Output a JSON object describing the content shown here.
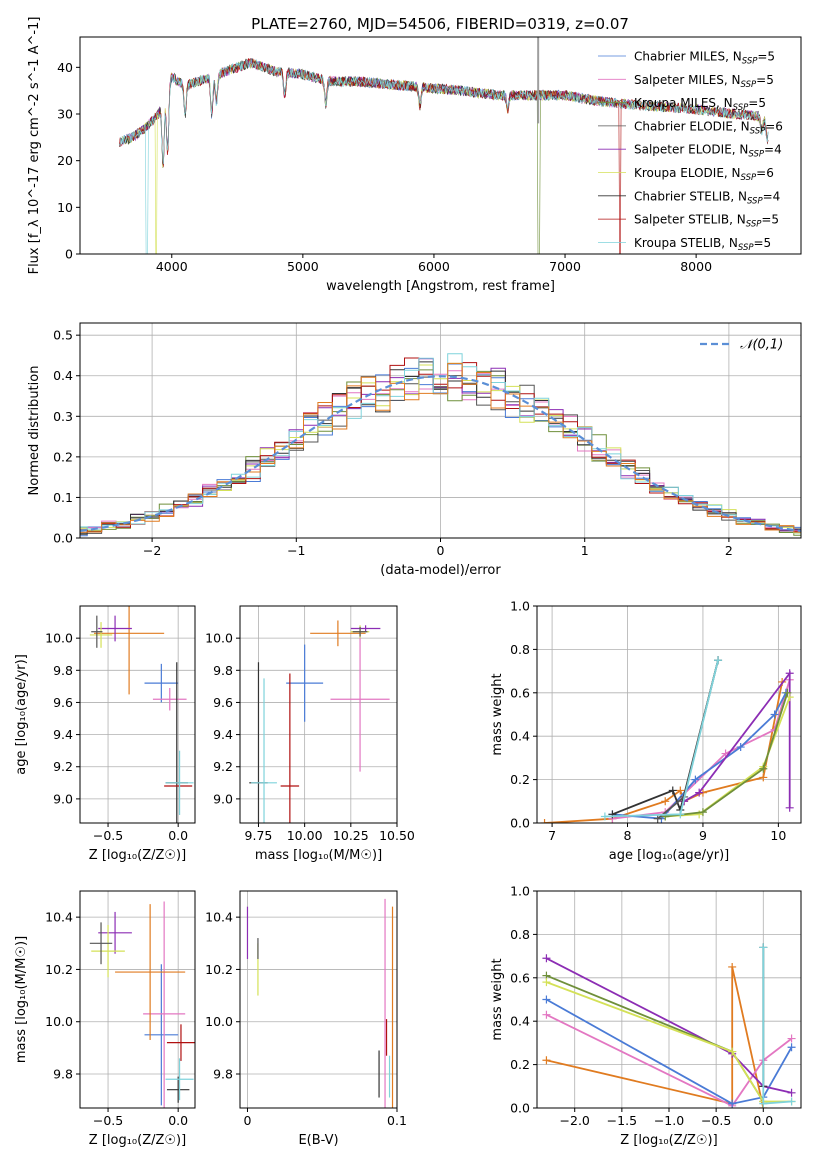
{
  "title": "PLATE=2760, MJD=54506, FIBERID=0319, z=0.07",
  "colors": {
    "Chabrier MILES": "#4a7bd6",
    "Salpeter MILES": "#e377c2",
    "Kroupa MILES": "#6f8f3a",
    "Chabrier ELODIE": "#555555",
    "Salpeter ELODIE": "#8c2db4",
    "Kroupa ELODIE": "#d4e157",
    "Chabrier STELIB": "#333333",
    "Salpeter STELIB": "#b01010",
    "Kroupa STELIB": "#7fd3db",
    "gauss": "#5b8fd6",
    "orange": "#e07b20"
  },
  "chart_data": [
    {
      "id": "spectrum",
      "type": "line",
      "xlabel": "wavelength [Angstrom, rest frame]",
      "ylabel": "Flux [f_λ 10^-17 erg cm^-2 s^-1 A^-1]",
      "xlim": [
        3300,
        8800
      ],
      "ylim": [
        0,
        46.5
      ],
      "xticks": [
        4000,
        5000,
        6000,
        7000,
        8000
      ],
      "yticks": [
        0,
        10,
        20,
        30,
        40
      ],
      "legend_position": "upper-right",
      "legend": [
        {
          "label": "Chabrier MILES, N",
          "sub": "SSP",
          "tail": "=5"
        },
        {
          "label": "Salpeter MILES, N",
          "sub": "SSP",
          "tail": "=5"
        },
        {
          "label": "Kroupa MILES, N",
          "sub": "SSP",
          "tail": "=5"
        },
        {
          "label": "Chabrier ELODIE, N",
          "sub": "SSP",
          "tail": "=6"
        },
        {
          "label": "Salpeter ELODIE, N",
          "sub": "SSP",
          "tail": "=4"
        },
        {
          "label": "Kroupa ELODIE, N",
          "sub": "SSP",
          "tail": "=6"
        },
        {
          "label": "Chabrier STELIB, N",
          "sub": "SSP",
          "tail": "=4"
        },
        {
          "label": "Salpeter STELIB, N",
          "sub": "SSP",
          "tail": "=5"
        },
        {
          "label": "Kroupa STELIB, N",
          "sub": "SSP",
          "tail": "=5"
        }
      ],
      "continuum": [
        [
          3600,
          24
        ],
        [
          3700,
          25
        ],
        [
          3800,
          27
        ],
        [
          3900,
          30
        ],
        [
          4000,
          38
        ],
        [
          4100,
          36
        ],
        [
          4200,
          37
        ],
        [
          4300,
          38
        ],
        [
          4400,
          39
        ],
        [
          4500,
          40
        ],
        [
          4600,
          41
        ],
        [
          4700,
          40
        ],
        [
          4800,
          39
        ],
        [
          5000,
          38.5
        ],
        [
          5200,
          37
        ],
        [
          5400,
          37
        ],
        [
          5600,
          36.5
        ],
        [
          5800,
          36
        ],
        [
          6000,
          35.5
        ],
        [
          6200,
          35
        ],
        [
          6500,
          34
        ],
        [
          6700,
          34
        ],
        [
          7000,
          34
        ],
        [
          7200,
          33
        ],
        [
          7500,
          32
        ],
        [
          8000,
          31
        ],
        [
          8300,
          30
        ],
        [
          8500,
          29.5
        ],
        [
          8550,
          28
        ]
      ],
      "absorptions": [
        [
          3934,
          14
        ],
        [
          3968,
          14
        ],
        [
          4102,
          6
        ],
        [
          4305,
          8
        ],
        [
          4340,
          6
        ],
        [
          4861,
          5
        ],
        [
          5175,
          5
        ],
        [
          5893,
          4
        ],
        [
          6563,
          3
        ],
        [
          8500,
          3
        ],
        [
          8542,
          4
        ],
        [
          8662,
          3
        ]
      ],
      "dropouts": [
        [
          3810,
          "Kroupa STELIB"
        ],
        [
          3880,
          "Kroupa ELODIE"
        ],
        [
          6800,
          "Kroupa MILES"
        ],
        [
          7420,
          "Salpeter STELIB"
        ]
      ],
      "spike": {
        "x": 6795,
        "y": 46.5
      }
    },
    {
      "id": "residuals",
      "type": "area",
      "xlabel": "(data-model)/error",
      "ylabel": "Normed distribution",
      "xlim": [
        -2.5,
        2.5
      ],
      "ylim": [
        0,
        0.53
      ],
      "xticks": [
        -2,
        -1,
        0,
        1,
        2
      ],
      "xtick_labels": [
        "−2",
        "−1",
        "0",
        "1",
        "2"
      ],
      "yticks": [
        0.0,
        0.1,
        0.2,
        0.3,
        0.4,
        0.5
      ],
      "ytick_labels": [
        "0.0",
        "0.1",
        "0.2",
        "0.3",
        "0.4",
        "0.5"
      ],
      "grid": true,
      "legend_position": "upper-right",
      "legend_label": "𝒩(0,1)",
      "bin_width": 0.1
    },
    {
      "id": "z-age",
      "type": "scatter",
      "xlabel": "Z [log₁₀(Z/Z☉)]",
      "ylabel": "age  [log₁₀(age/yr)]",
      "xlim": [
        -0.7,
        0.12
      ],
      "ylim": [
        8.85,
        10.2
      ],
      "xticks": [
        -0.5,
        0.0
      ],
      "xtick_labels": [
        "−0.5",
        "0.0"
      ],
      "yticks": [
        9.0,
        9.2,
        9.4,
        9.6,
        9.8,
        10.0
      ],
      "ytick_labels": [
        "9.0",
        "9.2",
        "9.4",
        "9.6",
        "9.8",
        "10.0"
      ],
      "grid": true,
      "points": [
        {
          "c": "Chabrier MILES",
          "x": -0.12,
          "y": 9.72,
          "xe": 0.12,
          "ye": 0.12
        },
        {
          "c": "Salpeter MILES",
          "x": -0.06,
          "y": 9.62,
          "xe": 0.12,
          "ye": 0.07
        },
        {
          "c": "orange",
          "x": -0.35,
          "y": 10.03,
          "xe": 0.25,
          "ye": 0.38
        },
        {
          "c": "Salpeter ELODIE",
          "x": -0.45,
          "y": 10.06,
          "xe": 0.12,
          "ye": 0.08
        },
        {
          "c": "Kroupa ELODIE",
          "x": -0.55,
          "y": 10.02,
          "xe": 0.08,
          "ye": 0.08
        },
        {
          "c": "Chabrier ELODIE",
          "x": -0.58,
          "y": 10.04,
          "xe": 0.04,
          "ye": 0.1
        },
        {
          "c": "Chabrier STELIB",
          "x": -0.01,
          "y": 9.1,
          "xe": 0.08,
          "ye": 0.75
        },
        {
          "c": "Salpeter STELIB",
          "x": 0.0,
          "y": 9.08,
          "xe": 0.1,
          "ye": 0.0
        },
        {
          "c": "Kroupa STELIB",
          "x": 0.01,
          "y": 9.1,
          "xe": 0.1,
          "ye": 0.2
        }
      ]
    },
    {
      "id": "mass-age",
      "type": "scatter",
      "xlabel": "mass [log₁₀(M/M☉)]",
      "ylabel": "",
      "xlim": [
        9.65,
        10.5
      ],
      "ylim": [
        8.85,
        10.2
      ],
      "xticks": [
        9.75,
        10.0,
        10.25,
        10.5
      ],
      "xtick_labels": [
        "9.75",
        "10.00",
        "10.25",
        "10.50"
      ],
      "yticks": [
        9.0,
        9.2,
        9.4,
        9.6,
        9.8,
        10.0
      ],
      "ytick_labels": [
        "9.0",
        "9.2",
        "9.4",
        "9.6",
        "9.8",
        "10.0"
      ],
      "grid": true,
      "points": [
        {
          "c": "Chabrier MILES",
          "x": 10.0,
          "y": 9.72,
          "xe": 0.1,
          "ye": 0.24
        },
        {
          "c": "Salpeter MILES",
          "x": 10.3,
          "y": 9.62,
          "xe": 0.16,
          "ye": 0.45
        },
        {
          "c": "orange",
          "x": 10.18,
          "y": 10.03,
          "xe": 0.15,
          "ye": 0.08
        },
        {
          "c": "Salpeter ELODIE",
          "x": 10.33,
          "y": 10.06,
          "xe": 0.08,
          "ye": 0.02
        },
        {
          "c": "Kroupa ELODIE",
          "x": 10.3,
          "y": 10.04,
          "xe": 0.05,
          "ye": 0.04
        },
        {
          "c": "Chabrier ELODIE",
          "x": 10.3,
          "y": 10.04,
          "xe": 0.04,
          "ye": 0.03
        },
        {
          "c": "Chabrier STELIB",
          "x": 9.75,
          "y": 9.1,
          "xe": 0.05,
          "ye": 0.75
        },
        {
          "c": "Salpeter STELIB",
          "x": 9.92,
          "y": 9.08,
          "xe": 0.05,
          "ye": 0.7
        },
        {
          "c": "Kroupa STELIB",
          "x": 9.78,
          "y": 9.1,
          "xe": 0.07,
          "ye": 0.65
        }
      ]
    },
    {
      "id": "weight-age",
      "type": "line",
      "xlabel": "age  [log₁₀(age/yr)]",
      "ylabel": "mass weight",
      "xlim": [
        6.8,
        10.3
      ],
      "ylim": [
        0,
        1.0
      ],
      "xticks": [
        7,
        8,
        9,
        10
      ],
      "xtick_labels": [
        "7",
        "8",
        "9",
        "10"
      ],
      "yticks": [
        0.0,
        0.2,
        0.4,
        0.6,
        0.8,
        1.0
      ],
      "ytick_labels": [
        "0.0",
        "0.2",
        "0.4",
        "0.6",
        "0.8",
        "1.0"
      ],
      "grid": true,
      "series": [
        {
          "c": "orange",
          "pts": [
            [
              6.9,
              0.0
            ],
            [
              7.8,
              0.02
            ],
            [
              8.5,
              0.1
            ],
            [
              8.7,
              0.15
            ],
            [
              8.75,
              0.1
            ],
            [
              9.0,
              0.14
            ],
            [
              9.8,
              0.21
            ],
            [
              10.05,
              0.65
            ]
          ]
        },
        {
          "c": "Salpeter MILES",
          "pts": [
            [
              7.8,
              0.02
            ],
            [
              8.5,
              0.05
            ],
            [
              9.3,
              0.32
            ],
            [
              9.95,
              0.43
            ],
            [
              10.15,
              0.66
            ]
          ]
        },
        {
          "c": "Chabrier MILES",
          "pts": [
            [
              7.8,
              0.04
            ],
            [
              8.45,
              0.02
            ],
            [
              8.9,
              0.2
            ],
            [
              9.5,
              0.35
            ],
            [
              9.95,
              0.5
            ],
            [
              10.1,
              0.6
            ]
          ]
        },
        {
          "c": "Salpeter ELODIE",
          "pts": [
            [
              8.75,
              0.1
            ],
            [
              8.95,
              0.14
            ],
            [
              10.15,
              0.69
            ],
            [
              10.15,
              0.07
            ]
          ]
        },
        {
          "c": "Kroupa ELODIE",
          "pts": [
            [
              8.5,
              0.03
            ],
            [
              8.95,
              0.04
            ],
            [
              9.8,
              0.26
            ],
            [
              10.15,
              0.58
            ]
          ]
        },
        {
          "c": "Kroupa MILES",
          "pts": [
            [
              8.5,
              0.03
            ],
            [
              9.0,
              0.05
            ],
            [
              9.8,
              0.25
            ],
            [
              10.12,
              0.6
            ]
          ]
        },
        {
          "c": "Chabrier STELIB",
          "pts": [
            [
              7.8,
              0.04
            ],
            [
              8.6,
              0.15
            ],
            [
              8.7,
              0.06
            ],
            [
              9.2,
              0.75
            ]
          ]
        },
        {
          "c": "Chabrier ELODIE",
          "pts": [
            [
              8.4,
              0.02
            ],
            [
              8.75,
              0.12
            ],
            [
              9.2,
              0.75
            ]
          ]
        },
        {
          "c": "Kroupa STELIB",
          "pts": [
            [
              7.7,
              0.03
            ],
            [
              8.7,
              0.04
            ],
            [
              9.2,
              0.75
            ]
          ]
        }
      ]
    },
    {
      "id": "z-mass",
      "type": "scatter",
      "xlabel": "Z [log₁₀(Z/Z☉)]",
      "ylabel": "mass [log₁₀(M/M☉)]",
      "xlim": [
        -0.7,
        0.12
      ],
      "ylim": [
        9.67,
        10.5
      ],
      "xticks": [
        -0.5,
        0.0
      ],
      "xtick_labels": [
        "−0.5",
        "0.0"
      ],
      "yticks": [
        9.8,
        10.0,
        10.2,
        10.4
      ],
      "ytick_labels": [
        "9.8",
        "10.0",
        "10.2",
        "10.4"
      ],
      "grid": true,
      "points": [
        {
          "c": "Chabrier MILES",
          "x": -0.12,
          "y": 9.95,
          "xe": 0.12,
          "ye": 0.27
        },
        {
          "c": "Salpeter MILES",
          "x": -0.1,
          "y": 10.03,
          "xe": 0.15,
          "ye": 0.43
        },
        {
          "c": "orange",
          "x": -0.2,
          "y": 10.19,
          "xe": 0.25,
          "ye": 0.26
        },
        {
          "c": "Salpeter ELODIE",
          "x": -0.45,
          "y": 10.34,
          "xe": 0.12,
          "ye": 0.08
        },
        {
          "c": "Kroupa ELODIE",
          "x": -0.5,
          "y": 10.27,
          "xe": 0.12,
          "ye": 0.1
        },
        {
          "c": "Chabrier ELODIE",
          "x": -0.55,
          "y": 10.3,
          "xe": 0.08,
          "ye": 0.08
        },
        {
          "c": "Chabrier STELIB",
          "x": 0.0,
          "y": 9.74,
          "xe": 0.08,
          "ye": 0.05
        },
        {
          "c": "Salpeter STELIB",
          "x": 0.02,
          "y": 9.92,
          "xe": 0.1,
          "ye": 0.07
        },
        {
          "c": "Kroupa STELIB",
          "x": 0.01,
          "y": 9.78,
          "xe": 0.1,
          "ye": 0.08
        }
      ]
    },
    {
      "id": "ebv-mass",
      "type": "scatter",
      "xlabel": "E(B-V)",
      "ylabel": "",
      "xlim": [
        -0.005,
        0.1
      ],
      "ylim": [
        9.67,
        10.5
      ],
      "xticks": [
        0,
        0.1
      ],
      "xtick_labels": [
        "0",
        "0.1"
      ],
      "yticks": [
        9.8,
        10.0,
        10.2,
        10.4
      ],
      "ytick_labels": [
        "9.8",
        "10.0",
        "10.2",
        "10.4"
      ],
      "grid": true,
      "points": [
        {
          "c": "Salpeter ELODIE",
          "x": 0.0,
          "y": 10.34,
          "xe": 0.0,
          "ye": 0.1
        },
        {
          "c": "Kroupa ELODIE",
          "x": 0.007,
          "y": 10.2,
          "xe": 0.0,
          "ye": 0.1
        },
        {
          "c": "Chabrier ELODIE",
          "x": 0.007,
          "y": 10.28,
          "xe": 0.0,
          "ye": 0.04
        },
        {
          "c": "Salpeter MILES",
          "x": 0.092,
          "y": 10.05,
          "xe": 0.0,
          "ye": 0.42
        },
        {
          "c": "orange",
          "x": 0.097,
          "y": 10.0,
          "xe": 0.0,
          "ye": 0.44
        },
        {
          "c": "Chabrier STELIB",
          "x": 0.088,
          "y": 9.8,
          "xe": 0.0,
          "ye": 0.09
        },
        {
          "c": "Salpeter STELIB",
          "x": 0.093,
          "y": 9.94,
          "xe": 0.0,
          "ye": 0.07
        },
        {
          "c": "Kroupa STELIB",
          "x": 0.095,
          "y": 9.79,
          "xe": 0.0,
          "ye": 0.08
        }
      ]
    },
    {
      "id": "weight-z",
      "type": "line",
      "xlabel": "Z [log₁₀(Z/Z☉)]",
      "ylabel": "mass weight",
      "xlim": [
        -2.4,
        0.4
      ],
      "ylim": [
        0,
        1.0
      ],
      "xticks": [
        -2.0,
        -1.5,
        -1.0,
        -0.5,
        0.0
      ],
      "xtick_labels": [
        "−2.0",
        "−1.5",
        "−1.0",
        "−0.5",
        "0.0"
      ],
      "yticks": [
        0.0,
        0.2,
        0.4,
        0.6,
        0.8,
        1.0
      ],
      "ytick_labels": [
        "0.0",
        "0.2",
        "0.4",
        "0.6",
        "0.8",
        "1.0"
      ],
      "grid": true,
      "series": [
        {
          "c": "orange",
          "pts": [
            [
              -2.3,
              0.22
            ],
            [
              -0.33,
              0.02
            ],
            [
              -0.33,
              0.65
            ],
            [
              0.0,
              0.0
            ]
          ]
        },
        {
          "c": "Salpeter MILES",
          "pts": [
            [
              -2.3,
              0.43
            ],
            [
              -0.33,
              0.01
            ],
            [
              0.0,
              0.22
            ],
            [
              0.3,
              0.32
            ]
          ]
        },
        {
          "c": "Chabrier MILES",
          "pts": [
            [
              -2.3,
              0.5
            ],
            [
              -0.33,
              0.02
            ],
            [
              0.0,
              0.05
            ],
            [
              0.3,
              0.28
            ]
          ]
        },
        {
          "c": "Salpeter ELODIE",
          "pts": [
            [
              -2.3,
              0.69
            ],
            [
              -0.33,
              0.25
            ],
            [
              0.0,
              0.1
            ],
            [
              0.3,
              0.07
            ]
          ]
        },
        {
          "c": "Kroupa MILES",
          "pts": [
            [
              -2.3,
              0.61
            ],
            [
              -0.33,
              0.26
            ],
            [
              0.0,
              0.03
            ]
          ]
        },
        {
          "c": "Kroupa ELODIE",
          "pts": [
            [
              -2.3,
              0.58
            ],
            [
              -0.33,
              0.26
            ],
            [
              0.0,
              0.03
            ],
            [
              0.3,
              0.03
            ]
          ]
        },
        {
          "c": "Chabrier STELIB",
          "pts": [
            [
              0.0,
              0.74
            ],
            [
              0.0,
              0.1
            ]
          ]
        },
        {
          "c": "Kroupa STELIB",
          "pts": [
            [
              0.0,
              0.74
            ],
            [
              0.0,
              0.02
            ],
            [
              0.3,
              0.03
            ]
          ]
        }
      ]
    }
  ]
}
